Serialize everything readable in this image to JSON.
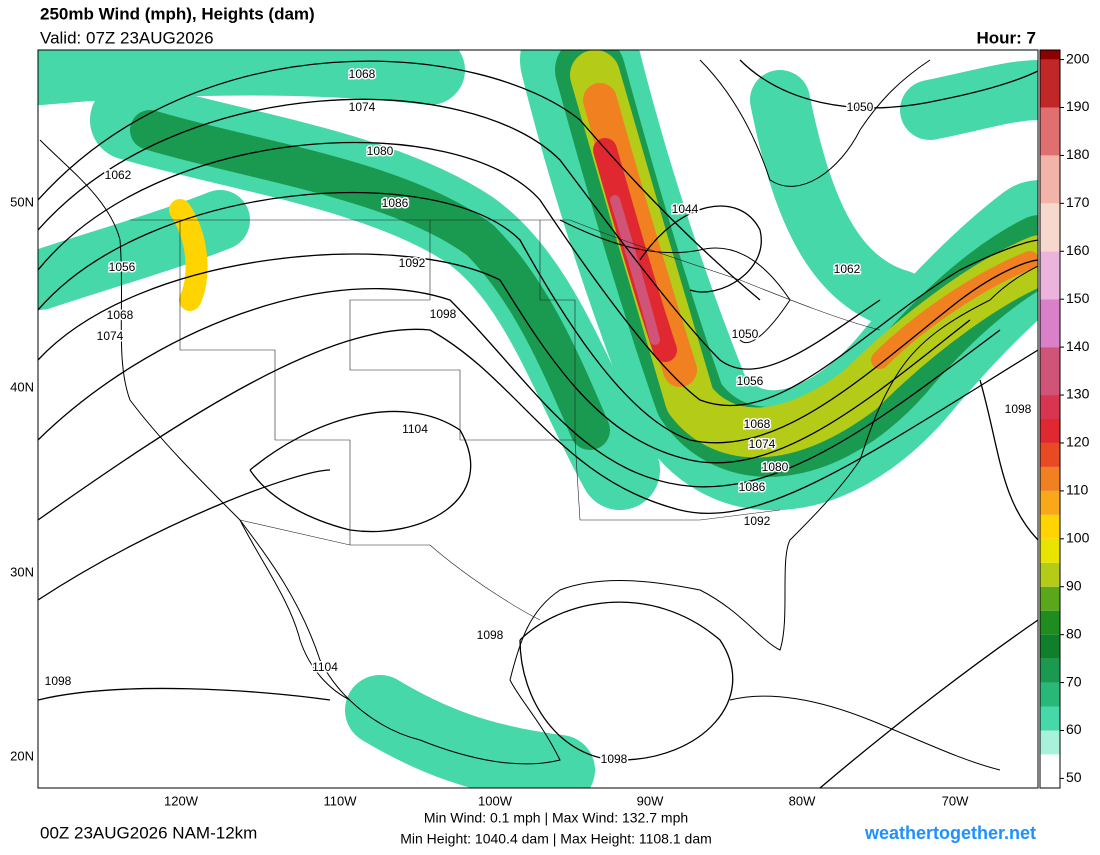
{
  "header": {
    "title": "250mb Wind (mph), Heights (dam)",
    "valid": "Valid: 07Z 23AUG2026",
    "hour": "Hour: 7"
  },
  "map": {
    "lat_labels": [
      "50N",
      "40N",
      "30N",
      "20N"
    ],
    "lon_labels": [
      "120W",
      "110W",
      "100W",
      "90W",
      "80W",
      "70W"
    ],
    "contour_labels": [
      "1068",
      "1074",
      "1080",
      "1086",
      "1092",
      "1098",
      "1104",
      "1062",
      "1056",
      "1068",
      "1074",
      "1044",
      "1050",
      "1062",
      "1050",
      "1056",
      "1068",
      "1074",
      "1080",
      "1086",
      "1092",
      "1098",
      "1098",
      "1104",
      "1098",
      "1098"
    ]
  },
  "colorbar": {
    "range": [
      48,
      202
    ],
    "ticks": [
      50,
      60,
      70,
      80,
      90,
      100,
      110,
      120,
      130,
      140,
      150,
      160,
      170,
      180,
      190,
      200
    ],
    "stops": [
      {
        "value": 50,
        "color": "#ffffff"
      },
      {
        "value": 55,
        "color": "#a8f2dc"
      },
      {
        "value": 60,
        "color": "#46d8a8"
      },
      {
        "value": 65,
        "color": "#28b878"
      },
      {
        "value": 70,
        "color": "#1a9a50"
      },
      {
        "value": 75,
        "color": "#0f7f2c"
      },
      {
        "value": 80,
        "color": "#1f8c1f"
      },
      {
        "value": 85,
        "color": "#5aa81a"
      },
      {
        "value": 90,
        "color": "#b4cc18"
      },
      {
        "value": 95,
        "color": "#e8e400"
      },
      {
        "value": 100,
        "color": "#ffd400"
      },
      {
        "value": 105,
        "color": "#f8a818"
      },
      {
        "value": 110,
        "color": "#f08020"
      },
      {
        "value": 115,
        "color": "#e84a24"
      },
      {
        "value": 120,
        "color": "#e02830"
      },
      {
        "value": 125,
        "color": "#d83650"
      },
      {
        "value": 130,
        "color": "#d05478"
      },
      {
        "value": 140,
        "color": "#d880c8"
      },
      {
        "value": 150,
        "color": "#ecb4dc"
      },
      {
        "value": 160,
        "color": "#f6d8cc"
      },
      {
        "value": 170,
        "color": "#f2b4a8"
      },
      {
        "value": 180,
        "color": "#e07070"
      },
      {
        "value": 190,
        "color": "#c02828"
      },
      {
        "value": 200,
        "color": "#8c0000"
      }
    ]
  },
  "footer": {
    "run": "00Z 23AUG2026 NAM-12km",
    "wind": "Min Wind:  0.1 mph | Max Wind: 132.7 mph",
    "height": "Min Height: 1040.4 dam | Max Height: 1108.1 dam",
    "site": "weathertogether.net"
  }
}
